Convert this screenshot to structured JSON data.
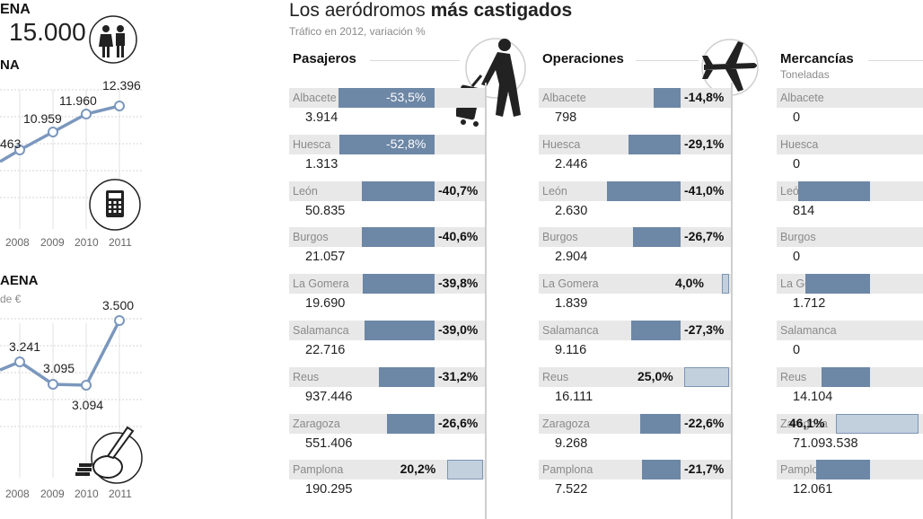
{
  "left_panel": {
    "top_fragment_1": "ENA",
    "big_number": "15.000",
    "top_fragment_2": "NA",
    "chart1_points": [
      {
        "year": "2008",
        "value": "463"
      },
      {
        "year": "2009",
        "value": "10.959"
      },
      {
        "year": "2010",
        "value": "11.960"
      },
      {
        "year": "2011",
        "value": "12.396"
      }
    ],
    "chart1_years": [
      "2008",
      "2009",
      "2010",
      "2011"
    ],
    "section2_title": "AENA",
    "section2_subtitle": "de €",
    "chart2_points": [
      {
        "year": "2008",
        "value": "3.241"
      },
      {
        "year": "2009",
        "value": "3.095"
      },
      {
        "year": "2010",
        "value": "3.094"
      },
      {
        "year": "2011",
        "value": "3.500"
      }
    ],
    "chart2_years": [
      "2008",
      "2009",
      "2010",
      "2011"
    ]
  },
  "main": {
    "title_light": "Los aeródromos",
    "title_bold": "más castigados",
    "subtitle": "Tráfico en 2012, variación %"
  },
  "chart_data": [
    {
      "type": "bar",
      "title": "Pasajeros",
      "categories": [
        "Albacete",
        "Huesca",
        "León",
        "Burgos",
        "La Gomera",
        "Salamanca",
        "Reus",
        "Zaragoza",
        "Pamplona"
      ],
      "totals": [
        "3.914",
        "1.313",
        "50.835",
        "21.057",
        "19.690",
        "22.716",
        "937.446",
        "551.406",
        "190.295"
      ],
      "values": [
        -53.5,
        -52.8,
        -40.7,
        -40.6,
        -39.8,
        -39.0,
        -31.2,
        -26.6,
        20.2
      ],
      "labels": [
        "-53,5%",
        "-52,8%",
        "-40,7%",
        "-40,6%",
        "-39,8%",
        "-39,0%",
        "-31,2%",
        "-26,6%",
        "20,2%"
      ]
    },
    {
      "type": "bar",
      "title": "Operaciones",
      "categories": [
        "Albacete",
        "Huesca",
        "León",
        "Burgos",
        "La Gomera",
        "Salamanca",
        "Reus",
        "Zaragoza",
        "Pamplona"
      ],
      "totals": [
        "798",
        "2.446",
        "2.630",
        "2.904",
        "1.839",
        "9.116",
        "16.111",
        "9.268",
        "7.522"
      ],
      "values": [
        -14.8,
        -29.1,
        -41.0,
        -26.7,
        4.0,
        -27.3,
        25.0,
        -22.6,
        -21.7
      ],
      "labels": [
        "-14,8%",
        "-29,1%",
        "-41,0%",
        "-26,7%",
        "4,0%",
        "-27,3%",
        "25,0%",
        "-22,6%",
        "-21,7%"
      ]
    },
    {
      "type": "bar",
      "title": "Mercancías",
      "subtitle": "Toneladas",
      "categories": [
        "Albacete",
        "Huesca",
        "León",
        "Burgos",
        "La Gomera",
        "Salamanca",
        "Reus",
        "Zaragoza",
        "Pamplona"
      ],
      "totals": [
        "0",
        "0",
        "814",
        "0",
        "1.712",
        "0",
        "14.104",
        "71.093.538",
        "12.061"
      ],
      "values": [
        null,
        null,
        -40.0,
        null,
        -36.0,
        null,
        -27.0,
        46.1,
        -30.0
      ],
      "labels": [
        "",
        "",
        "",
        "",
        "",
        "",
        "",
        "46,1%",
        ""
      ]
    }
  ],
  "colors": {
    "bar_negative": "#6d87a6",
    "bar_positive": "#c2d0de",
    "row_shade": "#e8e8e8",
    "line": "#7b97bd"
  },
  "icons": [
    "people-icon",
    "calculator-icon",
    "piggy-bank-icon",
    "traveler-icon",
    "airplane-icon"
  ]
}
